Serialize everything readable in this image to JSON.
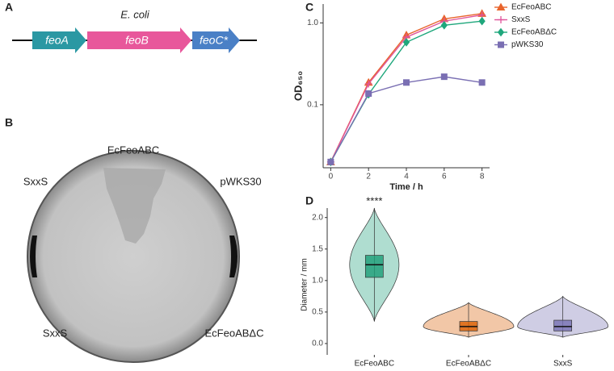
{
  "panels": {
    "a": "A",
    "b": "B",
    "c": "C",
    "d": "D"
  },
  "gene_diagram": {
    "organism": "E. coli",
    "genes": [
      {
        "name": "feoA",
        "color": "#2b98a3"
      },
      {
        "name": "feoB",
        "color": "#e8579b"
      },
      {
        "name": "feoC*",
        "color": "#4a80c6"
      }
    ]
  },
  "plate": {
    "labels": [
      "EcFeoABC",
      "SxxS",
      "pWKS30",
      "SxxS",
      "EcFeoABΔC"
    ]
  },
  "chart_data": [
    {
      "type": "line",
      "x_label": "Time / h",
      "y_label": "OD₆₅₀",
      "log_y": true,
      "x": [
        0,
        2,
        4,
        6,
        8
      ],
      "xlim": [
        -0.4,
        8.4
      ],
      "xticks": [
        0,
        2,
        4,
        6,
        8
      ],
      "ylim": [
        0.017,
        1.7
      ],
      "yticks": [
        0.1,
        {
          "value": 1,
          "label": "1.0"
        }
      ],
      "series": [
        {
          "name": "EcFeoABC",
          "color": "#e8642c",
          "marker": "triangle",
          "values": [
            0.02,
            0.187,
            0.71,
            1.12,
            1.3
          ]
        },
        {
          "name": "SxxS",
          "color": "#e0559b",
          "marker": "plus",
          "values": [
            0.02,
            0.18,
            0.67,
            1.05,
            1.25
          ]
        },
        {
          "name": "EcFeoABΔC",
          "color": "#1fa77c",
          "marker": "diamond",
          "values": [
            0.02,
            0.134,
            0.58,
            0.935,
            1.05
          ]
        },
        {
          "name": "pWKS30",
          "color": "#7a6fb3",
          "marker": "square",
          "values": [
            0.02,
            0.137,
            0.187,
            0.22,
            0.187
          ]
        }
      ]
    },
    {
      "type": "violin",
      "y_label": "Diameter / mm",
      "annotation": "****",
      "categories": [
        "EcFeoABC",
        "EcFeoABΔC",
        "SxxS"
      ],
      "colors": [
        "#1b9e77",
        "#d95f02",
        "#7570b3"
      ],
      "min": [
        0.35,
        0.1,
        0.1
      ],
      "q1": [
        1.05,
        0.2,
        0.2
      ],
      "median": [
        1.25,
        0.27,
        0.27
      ],
      "q3": [
        1.4,
        0.35,
        0.37
      ],
      "max": [
        2.15,
        0.65,
        0.75
      ],
      "ylim": [
        -0.18,
        2.15
      ],
      "yticks": [
        {
          "value": 0,
          "label": "0.0"
        },
        0.5,
        {
          "value": 1,
          "label": "1.0"
        },
        1.5,
        {
          "value": 2,
          "label": "2.0"
        }
      ]
    }
  ]
}
